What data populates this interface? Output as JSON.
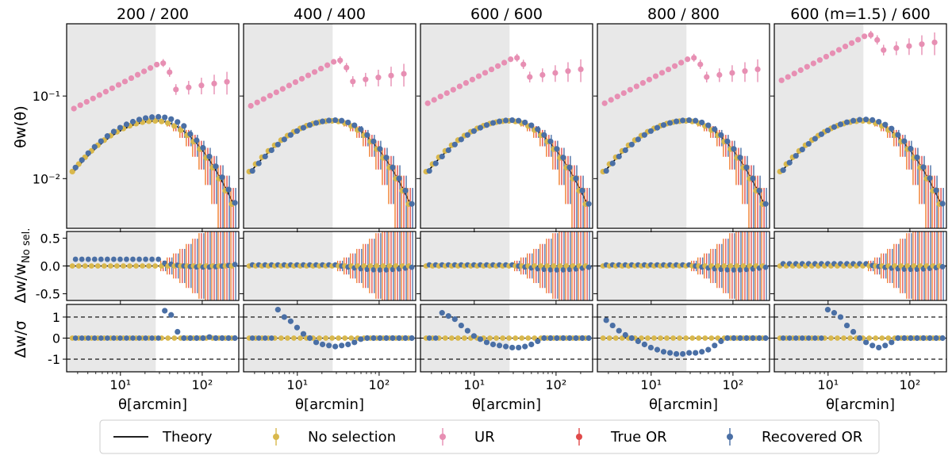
{
  "chart_data": {
    "type": "scatter",
    "panel_titles": [
      "200 / 200",
      "400 / 400",
      "600 / 600",
      "800 / 800",
      "600 (m=1.5) / 600"
    ],
    "xlabel": "θ[arcmin]",
    "xscale": "log",
    "xlim": [
      2.2,
      280
    ],
    "x_ticks": [
      {
        "value": 10,
        "label": "10¹"
      },
      {
        "value": 100,
        "label": "10²"
      }
    ],
    "shaded_xmax": 27,
    "top_row": {
      "ylabel": "θw(θ)",
      "yscale": "log",
      "ylim": [
        0.0025,
        0.75
      ],
      "y_ticks": [
        {
          "value": 0.01,
          "label": "10⁻²"
        },
        {
          "value": 0.1,
          "label": "10⁻¹"
        }
      ]
    },
    "mid_row": {
      "ylabel": "Δw/w_No sel.",
      "ylim": [
        -0.62,
        0.62
      ],
      "y_ticks": [
        "0.5",
        "0.0",
        "-0.5"
      ]
    },
    "bottom_row": {
      "ylabel": "Δw/σ",
      "ylim": [
        -1.6,
        1.6
      ],
      "y_ticks": [
        "1",
        "0",
        "-1"
      ],
      "dashed_lines": [
        1,
        0,
        -1
      ]
    },
    "series_colors": {
      "theory": "#000000",
      "no_selection": "#d9b84c",
      "ur": "#e78fb3",
      "true_or": "#e04a4a",
      "recovered_or": "#4a6fa5",
      "error_orange": "#f07c2a",
      "shade": "#e8e8e8"
    },
    "legend": {
      "placement": "bottom-center",
      "entries": [
        {
          "key": "theory",
          "label": "Theory"
        },
        {
          "key": "no_selection",
          "label": "No selection"
        },
        {
          "key": "ur",
          "label": "UR"
        },
        {
          "key": "true_or",
          "label": "True OR"
        },
        {
          "key": "recovered_or",
          "label": "Recovered OR"
        }
      ]
    },
    "panels": [
      {
        "title": "200 / 200",
        "theory_amp": 1.0,
        "ur_peak": 0.25,
        "ur_tail": 0.12,
        "rec_mid_offset": 0.12,
        "rec_bottom": [
          1.3,
          1.1,
          0.3,
          0.0,
          0.0,
          0.0,
          0.0,
          0.05
        ],
        "rec_bottom_start": 32
      },
      {
        "title": "400 / 400",
        "theory_amp": 1.0,
        "ur_peak": 0.27,
        "ur_tail": 0.15,
        "rec_mid_offset": 0.02,
        "rec_bottom": [
          1.35,
          1.0,
          0.8,
          0.5,
          0.2,
          0.0,
          -0.2,
          -0.3,
          -0.35,
          -0.4,
          -0.35,
          -0.3,
          -0.2,
          -0.05,
          0.0
        ],
        "rec_bottom_start": 5
      },
      {
        "title": "600 / 600",
        "theory_amp": 1.0,
        "ur_peak": 0.29,
        "ur_tail": 0.17,
        "rec_mid_offset": 0.02,
        "rec_bottom": [
          1.2,
          1.05,
          0.9,
          0.6,
          0.35,
          0.1,
          -0.05,
          -0.2,
          -0.3,
          -0.35,
          -0.4,
          -0.45,
          -0.45,
          -0.4,
          -0.3,
          -0.15,
          0.0
        ],
        "rec_bottom_start": 3.3
      },
      {
        "title": "800 / 800",
        "theory_amp": 1.0,
        "ur_peak": 0.29,
        "ur_tail": 0.17,
        "rec_mid_offset": 0.02,
        "rec_bottom": [
          0.85,
          0.6,
          0.35,
          0.15,
          0.0,
          -0.15,
          -0.3,
          -0.45,
          -0.55,
          -0.65,
          -0.7,
          -0.75,
          -0.75,
          -0.7,
          -0.7,
          -0.65,
          -0.55,
          -0.35,
          -0.15,
          0.0
        ],
        "rec_bottom_start": 2.6
      },
      {
        "title": "600 (m=1.5) / 600",
        "theory_amp": 1.0,
        "ur_peak": 0.55,
        "ur_tail": 0.36,
        "rec_mid_offset": 0.04,
        "rec_bottom": [
          1.35,
          1.2,
          1.0,
          0.6,
          0.3,
          0.0,
          -0.2,
          -0.35,
          -0.45,
          -0.35,
          -0.2,
          0.0
        ],
        "rec_bottom_start": 8.5
      }
    ]
  }
}
